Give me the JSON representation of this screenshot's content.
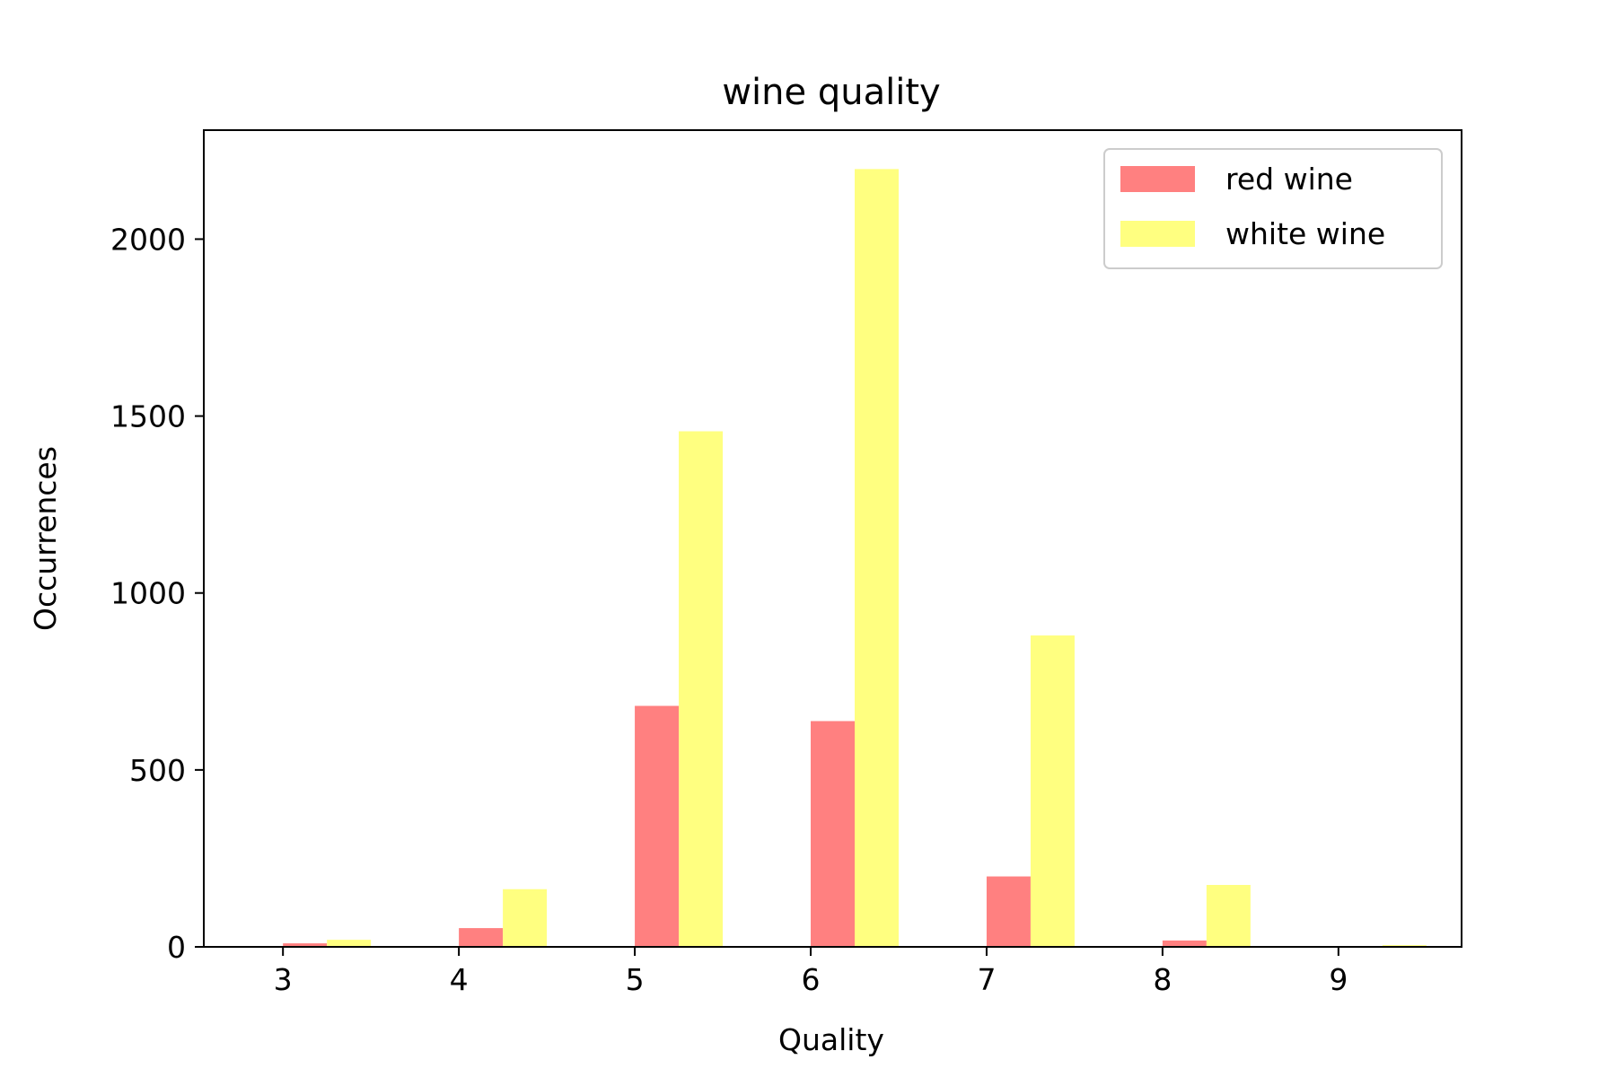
{
  "chart_data": {
    "type": "bar",
    "title": "wine quality",
    "xlabel": "Quality",
    "ylabel": "Occurrences",
    "categories": [
      "3",
      "4",
      "5",
      "6",
      "7",
      "8",
      "9"
    ],
    "x": [
      3,
      4,
      5,
      6,
      7,
      8,
      9
    ],
    "series": [
      {
        "name": "red wine",
        "color": "#ff8080",
        "values": [
          10,
          53,
          681,
          638,
          199,
          18,
          0
        ]
      },
      {
        "name": "white wine",
        "color": "#ffff80",
        "values": [
          20,
          163,
          1457,
          2198,
          880,
          175,
          5
        ]
      }
    ],
    "xlim": [
      2.55,
      9.7
    ],
    "ylim": [
      0,
      2308
    ],
    "yticks": [
      0,
      500,
      1000,
      1500,
      2000
    ],
    "grid": false,
    "legend_position": "top-right"
  }
}
